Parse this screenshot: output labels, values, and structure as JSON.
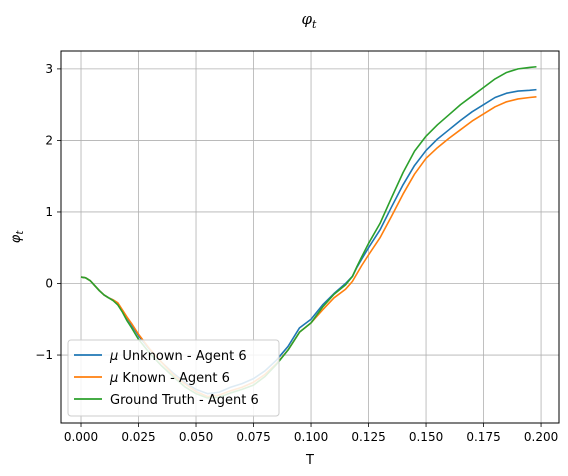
{
  "chart_data": {
    "type": "line",
    "title": "φ_t",
    "title_display": "φt",
    "xlabel": "T",
    "ylabel": "φt",
    "xlim": [
      -0.0087,
      0.2078
    ],
    "ylim": [
      -1.95,
      3.25
    ],
    "xticks": [
      0.0,
      0.025,
      0.05,
      0.075,
      0.1,
      0.125,
      0.15,
      0.175,
      0.2
    ],
    "xtick_labels": [
      "0.000",
      "0.025",
      "0.050",
      "0.075",
      "0.100",
      "0.125",
      "0.150",
      "0.175",
      "0.200"
    ],
    "yticks": [
      -1,
      0,
      1,
      2,
      3
    ],
    "ytick_labels": [
      "−1",
      "0",
      "1",
      "2",
      "3"
    ],
    "grid": true,
    "legend_position": "lower-left",
    "series": [
      {
        "name": "μ Unknown - Agent 6",
        "name_prefix": "μ",
        "name_rest": " Unknown - Agent 6",
        "color": "#1f77b4",
        "x": [
          0.0,
          0.002,
          0.004,
          0.006,
          0.008,
          0.01,
          0.012,
          0.014,
          0.016,
          0.018,
          0.02,
          0.022,
          0.025,
          0.03,
          0.035,
          0.04,
          0.045,
          0.05,
          0.055,
          0.06,
          0.065,
          0.07,
          0.075,
          0.08,
          0.085,
          0.09,
          0.095,
          0.1,
          0.105,
          0.11,
          0.115,
          0.118,
          0.12,
          0.122,
          0.125,
          0.13,
          0.135,
          0.14,
          0.145,
          0.15,
          0.155,
          0.16,
          0.165,
          0.17,
          0.175,
          0.18,
          0.185,
          0.19,
          0.195,
          0.198
        ],
        "y": [
          0.09,
          0.08,
          0.04,
          -0.03,
          -0.1,
          -0.16,
          -0.2,
          -0.23,
          -0.28,
          -0.38,
          -0.48,
          -0.58,
          -0.73,
          -0.93,
          -1.1,
          -1.25,
          -1.38,
          -1.48,
          -1.54,
          -1.52,
          -1.45,
          -1.4,
          -1.33,
          -1.22,
          -1.07,
          -0.88,
          -0.62,
          -0.5,
          -0.3,
          -0.14,
          0.0,
          0.1,
          0.23,
          0.34,
          0.5,
          0.75,
          1.07,
          1.38,
          1.65,
          1.86,
          2.02,
          2.15,
          2.28,
          2.4,
          2.5,
          2.6,
          2.66,
          2.69,
          2.7,
          2.71
        ]
      },
      {
        "name": "μ Known - Agent 6",
        "name_prefix": "μ",
        "name_rest": " Known - Agent 6",
        "color": "#ff7f0e",
        "x": [
          0.0,
          0.002,
          0.004,
          0.006,
          0.008,
          0.01,
          0.012,
          0.014,
          0.016,
          0.018,
          0.02,
          0.022,
          0.025,
          0.03,
          0.035,
          0.04,
          0.045,
          0.05,
          0.055,
          0.06,
          0.065,
          0.07,
          0.075,
          0.08,
          0.085,
          0.09,
          0.095,
          0.1,
          0.105,
          0.11,
          0.115,
          0.118,
          0.12,
          0.122,
          0.125,
          0.13,
          0.135,
          0.14,
          0.145,
          0.15,
          0.155,
          0.16,
          0.165,
          0.17,
          0.175,
          0.18,
          0.185,
          0.19,
          0.195,
          0.198
        ],
        "y": [
          0.09,
          0.08,
          0.04,
          -0.03,
          -0.1,
          -0.16,
          -0.2,
          -0.23,
          -0.27,
          -0.37,
          -0.47,
          -0.56,
          -0.71,
          -0.92,
          -1.1,
          -1.27,
          -1.4,
          -1.51,
          -1.58,
          -1.56,
          -1.5,
          -1.45,
          -1.38,
          -1.27,
          -1.12,
          -0.93,
          -0.68,
          -0.55,
          -0.37,
          -0.2,
          -0.08,
          0.03,
          0.14,
          0.25,
          0.4,
          0.64,
          0.94,
          1.25,
          1.53,
          1.75,
          1.9,
          2.03,
          2.15,
          2.27,
          2.37,
          2.47,
          2.54,
          2.58,
          2.6,
          2.61
        ]
      },
      {
        "name": "Ground Truth - Agent 6",
        "name_prefix": "",
        "name_rest": "Ground Truth - Agent 6",
        "color": "#2ca02c",
        "x": [
          0.0,
          0.002,
          0.004,
          0.006,
          0.008,
          0.01,
          0.012,
          0.014,
          0.016,
          0.018,
          0.02,
          0.022,
          0.025,
          0.03,
          0.035,
          0.04,
          0.045,
          0.05,
          0.055,
          0.06,
          0.065,
          0.07,
          0.075,
          0.08,
          0.085,
          0.09,
          0.095,
          0.1,
          0.105,
          0.11,
          0.115,
          0.118,
          0.12,
          0.122,
          0.125,
          0.13,
          0.135,
          0.14,
          0.145,
          0.15,
          0.155,
          0.16,
          0.165,
          0.17,
          0.175,
          0.18,
          0.185,
          0.19,
          0.195,
          0.198
        ],
        "y": [
          0.09,
          0.08,
          0.04,
          -0.03,
          -0.1,
          -0.16,
          -0.2,
          -0.24,
          -0.3,
          -0.4,
          -0.52,
          -0.62,
          -0.78,
          -0.98,
          -1.15,
          -1.3,
          -1.44,
          -1.54,
          -1.6,
          -1.59,
          -1.53,
          -1.48,
          -1.42,
          -1.3,
          -1.13,
          -0.93,
          -0.68,
          -0.55,
          -0.33,
          -0.15,
          -0.02,
          0.1,
          0.24,
          0.37,
          0.56,
          0.84,
          1.2,
          1.55,
          1.85,
          2.06,
          2.22,
          2.36,
          2.5,
          2.62,
          2.74,
          2.86,
          2.95,
          3.0,
          3.02,
          3.03
        ]
      }
    ]
  }
}
